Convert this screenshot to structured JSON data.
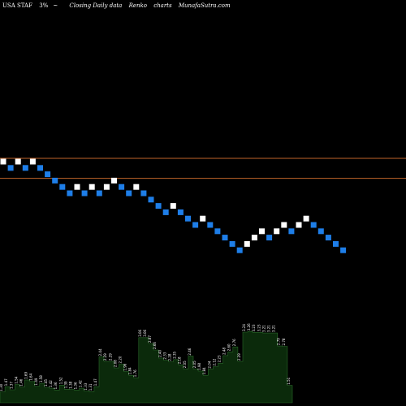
{
  "header": {
    "ticker": "USA STAF",
    "pct": "3%",
    "mark": "~",
    "desc": "Closing Daily data",
    "chart_type": "Renko",
    "word": "charts",
    "site": "MunafaSutra.com"
  },
  "colors": {
    "background": "#000000",
    "up_brick": "#ffffff",
    "down_brick": "#1e7ee8",
    "resistance_line": "#c0642a",
    "volume_fill": "#0b2a0b",
    "volume_stroke": "#2a6a2a"
  },
  "chart_data": {
    "type": "renko",
    "brick_size": "3%",
    "bricks": [
      {
        "d": "up",
        "level": 10
      },
      {
        "d": "down",
        "level": 9
      },
      {
        "d": "up",
        "level": 10
      },
      {
        "d": "down",
        "level": 9
      },
      {
        "d": "up",
        "level": 10
      },
      {
        "d": "down",
        "level": 9
      },
      {
        "d": "down",
        "level": 8
      },
      {
        "d": "down",
        "level": 7
      },
      {
        "d": "down",
        "level": 6
      },
      {
        "d": "down",
        "level": 5
      },
      {
        "d": "up",
        "level": 6
      },
      {
        "d": "down",
        "level": 5
      },
      {
        "d": "up",
        "level": 6
      },
      {
        "d": "down",
        "level": 5
      },
      {
        "d": "up",
        "level": 6
      },
      {
        "d": "up",
        "level": 7
      },
      {
        "d": "down",
        "level": 6
      },
      {
        "d": "down",
        "level": 5
      },
      {
        "d": "up",
        "level": 6
      },
      {
        "d": "down",
        "level": 5
      },
      {
        "d": "down",
        "level": 4
      },
      {
        "d": "down",
        "level": 3
      },
      {
        "d": "down",
        "level": 2
      },
      {
        "d": "up",
        "level": 3
      },
      {
        "d": "down",
        "level": 2
      },
      {
        "d": "down",
        "level": 1
      },
      {
        "d": "down",
        "level": 0
      },
      {
        "d": "up",
        "level": 1
      },
      {
        "d": "down",
        "level": 0
      },
      {
        "d": "down",
        "level": -1
      },
      {
        "d": "down",
        "level": -2
      },
      {
        "d": "down",
        "level": -3
      },
      {
        "d": "down",
        "level": -4
      },
      {
        "d": "up",
        "level": -3
      },
      {
        "d": "up",
        "level": -2
      },
      {
        "d": "up",
        "level": -1
      },
      {
        "d": "down",
        "level": -2
      },
      {
        "d": "up",
        "level": -1
      },
      {
        "d": "up",
        "level": 0
      },
      {
        "d": "down",
        "level": -1
      },
      {
        "d": "up",
        "level": 0
      },
      {
        "d": "up",
        "level": 1
      },
      {
        "d": "down",
        "level": 0
      },
      {
        "d": "down",
        "level": -1
      },
      {
        "d": "down",
        "level": -2
      },
      {
        "d": "down",
        "level": -3
      },
      {
        "d": "down",
        "level": -4
      }
    ],
    "resistance_levels": [
      10,
      8
    ],
    "volume": {
      "values": [
        1.3,
        1.47,
        1.37,
        1.54,
        1.46,
        1.69,
        1.64,
        1.49,
        1.58,
        1.45,
        1.42,
        1.36,
        1.52,
        1.39,
        1.38,
        1.36,
        1.42,
        1.33,
        1.31,
        1.47,
        2.44,
        2.29,
        2.29,
        2.08,
        2.2,
        1.96,
        1.84,
        1.76,
        3.06,
        3.06,
        2.87,
        2.66,
        2.4,
        2.33,
        2.28,
        2.35,
        2.18,
        2.05,
        2.46,
        2.05,
        1.98,
        1.84,
        2.04,
        2.12,
        2.23,
        2.48,
        2.6,
        2.76,
        2.29,
        3.24,
        3.26,
        3.23,
        3.23,
        3.21,
        3.21,
        3.21,
        2.79,
        2.78,
        1.51
      ],
      "labels": [
        "1.30",
        "1.47",
        "1.37",
        "1.54",
        "1.46",
        "1.69",
        "1.64",
        "1.49",
        "1.58",
        "1.45",
        "1.42",
        "1.36",
        "1.52",
        "1.39",
        "1.38",
        "1.36",
        "1.42",
        "1.33",
        "1.31",
        "1.47",
        "2.44",
        "2.29",
        "2.29",
        "2.08",
        "2.20",
        "1.96",
        "1.84",
        "1.76",
        "3.06",
        "3.06",
        "2.87",
        "2.66",
        "2.40",
        "2.33",
        "2.28",
        "2.35",
        "2.18",
        "2.05",
        "2.46",
        "2.05",
        "1.98",
        "1.84",
        "2.04",
        "2.12",
        "2.23",
        "2.48",
        "2.60",
        "2.76",
        "2.29",
        "3.24",
        "3.26",
        "3.23",
        "3.23",
        "3.21",
        "3.21",
        "3.21",
        "2.79",
        "2.78",
        "1.51"
      ]
    }
  }
}
